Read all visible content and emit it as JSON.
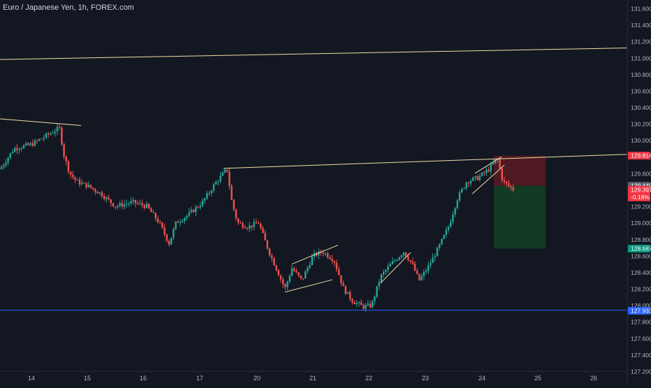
{
  "header": {
    "title": "Euro / Japanese Yen, 1h, FOREX.com"
  },
  "colors": {
    "background": "#131722",
    "up": "#26a69a",
    "down": "#ef5350",
    "trendline": "#f0dfa6",
    "support": "#2962ff",
    "axis_text": "#b2b5be",
    "stop_zone": "#5a1a22",
    "target_zone": "#123f24"
  },
  "chart_data": {
    "type": "candlestick",
    "symbol": "EURJPY",
    "timeframe": "1h",
    "y_ticks": [
      "131.600",
      "131.400",
      "131.200",
      "131.000",
      "130.800",
      "130.600",
      "130.400",
      "130.200",
      "130.000",
      "129.800",
      "129.600",
      "129.400",
      "129.200",
      "129.000",
      "128.800",
      "128.600",
      "128.400",
      "128.200",
      "128.000",
      "127.800",
      "127.600",
      "127.400",
      "127.200"
    ],
    "x_ticks": [
      "14",
      "15",
      "16",
      "17",
      "20",
      "21",
      "22",
      "23",
      "24",
      "25",
      "26"
    ],
    "ylim": [
      127.15,
      131.7
    ],
    "price_labels": [
      {
        "value": "129.814",
        "kind": "stop"
      },
      {
        "value": "129.449",
        "kind": "last"
      },
      {
        "value": "129.397",
        "sub": "-0.18%",
        "kind": "current"
      },
      {
        "value": "128.687",
        "kind": "target"
      },
      {
        "value": "127.933",
        "kind": "support"
      }
    ],
    "anchors": [
      {
        "x": 0,
        "v": 129.65
      },
      {
        "x": 20,
        "v": 129.9
      },
      {
        "x": 45,
        "v": 129.95
      },
      {
        "x": 65,
        "v": 130.05
      },
      {
        "x": 85,
        "v": 130.15
      },
      {
        "x": 92,
        "v": 129.8
      },
      {
        "x": 100,
        "v": 129.6
      },
      {
        "x": 110,
        "v": 129.5
      },
      {
        "x": 125,
        "v": 129.45
      },
      {
        "x": 145,
        "v": 129.35
      },
      {
        "x": 165,
        "v": 129.2
      },
      {
        "x": 190,
        "v": 129.25
      },
      {
        "x": 210,
        "v": 129.2
      },
      {
        "x": 228,
        "v": 129.0
      },
      {
        "x": 242,
        "v": 128.75
      },
      {
        "x": 252,
        "v": 129.0
      },
      {
        "x": 270,
        "v": 129.1
      },
      {
        "x": 290,
        "v": 129.25
      },
      {
        "x": 310,
        "v": 129.5
      },
      {
        "x": 325,
        "v": 129.65
      },
      {
        "x": 332,
        "v": 129.25
      },
      {
        "x": 340,
        "v": 129.0
      },
      {
        "x": 355,
        "v": 128.95
      },
      {
        "x": 370,
        "v": 129.0
      },
      {
        "x": 385,
        "v": 128.65
      },
      {
        "x": 398,
        "v": 128.4
      },
      {
        "x": 408,
        "v": 128.2
      },
      {
        "x": 418,
        "v": 128.45
      },
      {
        "x": 432,
        "v": 128.3
      },
      {
        "x": 448,
        "v": 128.6
      },
      {
        "x": 462,
        "v": 128.65
      },
      {
        "x": 478,
        "v": 128.55
      },
      {
        "x": 492,
        "v": 128.2
      },
      {
        "x": 505,
        "v": 128.05
      },
      {
        "x": 520,
        "v": 127.98
      },
      {
        "x": 532,
        "v": 128.0
      },
      {
        "x": 545,
        "v": 128.35
      },
      {
        "x": 560,
        "v": 128.5
      },
      {
        "x": 578,
        "v": 128.65
      },
      {
        "x": 590,
        "v": 128.5
      },
      {
        "x": 600,
        "v": 128.3
      },
      {
        "x": 612,
        "v": 128.45
      },
      {
        "x": 628,
        "v": 128.7
      },
      {
        "x": 642,
        "v": 128.95
      },
      {
        "x": 655,
        "v": 129.3
      },
      {
        "x": 668,
        "v": 129.5
      },
      {
        "x": 685,
        "v": 129.55
      },
      {
        "x": 700,
        "v": 129.65
      },
      {
        "x": 712,
        "v": 129.78
      },
      {
        "x": 720,
        "v": 129.5
      },
      {
        "x": 736,
        "v": 129.4
      }
    ],
    "trendlines": [
      {
        "x1": 0,
        "v1": 130.98,
        "x2": 898,
        "v2": 131.12,
        "style": "trend"
      },
      {
        "x1": 0,
        "v1": 130.26,
        "x2": 116,
        "v2": 130.18,
        "style": "trend"
      },
      {
        "x1": 320,
        "v1": 129.66,
        "x2": 898,
        "v2": 129.83,
        "style": "trend"
      },
      {
        "x1": 418,
        "v1": 128.5,
        "x2": 484,
        "v2": 128.73,
        "style": "trend"
      },
      {
        "x1": 408,
        "v1": 128.16,
        "x2": 476,
        "v2": 128.31,
        "style": "trend"
      },
      {
        "x1": 545,
        "v1": 128.27,
        "x2": 588,
        "v2": 128.64,
        "style": "trend"
      },
      {
        "x1": 680,
        "v1": 129.6,
        "x2": 718,
        "v2": 129.8,
        "style": "trend"
      },
      {
        "x1": 676,
        "v1": 129.35,
        "x2": 722,
        "v2": 129.7,
        "style": "trend"
      },
      {
        "x1": 0,
        "v1": 127.94,
        "x2": 898,
        "v2": 127.94,
        "style": "support"
      }
    ],
    "position": {
      "x_start": 707,
      "x_end": 781,
      "stop": 129.814,
      "entry": 129.449,
      "target": 128.687
    }
  }
}
